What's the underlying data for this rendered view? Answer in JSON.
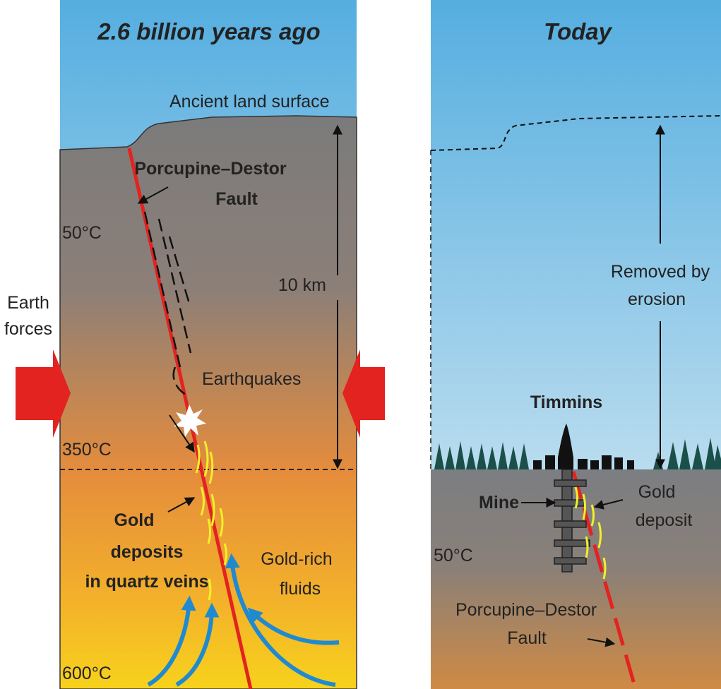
{
  "left_panel": {
    "title": "2.6 billion years ago",
    "surface_label": "Ancient land surface",
    "fault_label": [
      "Porcupine–Destor",
      "Fault"
    ],
    "temp_top": "50°C",
    "depth_label": "10 km",
    "forces_label": [
      "Earth",
      "forces"
    ],
    "earthquakes_label": "Earthquakes",
    "temp_mid": "350°C",
    "gold_label": [
      "Gold",
      "deposits",
      "in quartz veins"
    ],
    "fluids_label": [
      "Gold-rich",
      "fluids"
    ],
    "temp_bottom": "600°C"
  },
  "right_panel": {
    "title": "Today",
    "erosion_label": [
      "Removed by",
      "erosion"
    ],
    "town_label": "Timmins",
    "mine_label": "Mine",
    "deposit_label": [
      "Gold",
      "deposit"
    ],
    "temp_label": "50°C",
    "fault_label": [
      "Porcupine–Destor",
      "Fault"
    ]
  }
}
